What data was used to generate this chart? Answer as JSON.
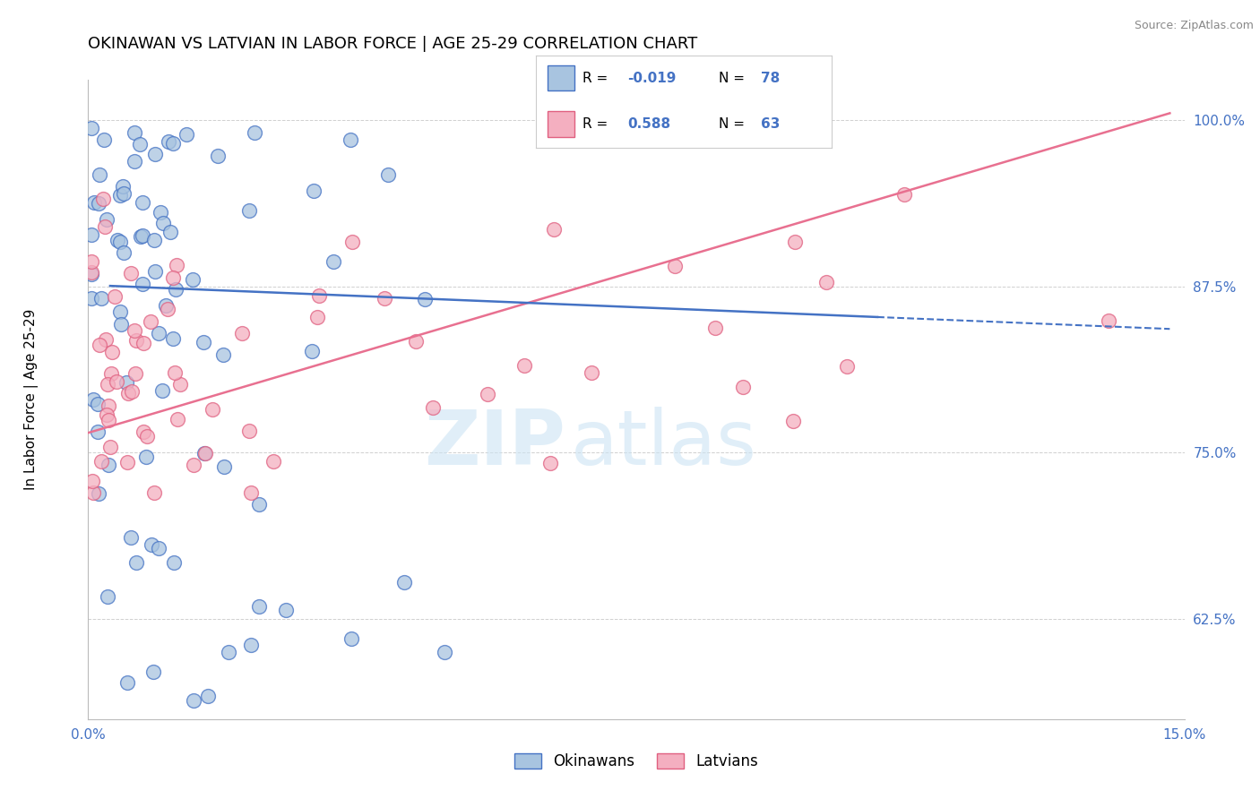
{
  "title": "OKINAWAN VS LATVIAN IN LABOR FORCE | AGE 25-29 CORRELATION CHART",
  "source_text": "Source: ZipAtlas.com",
  "xlim": [
    0.0,
    0.15
  ],
  "ylim": [
    0.55,
    1.03
  ],
  "okinawan_fill": "#a8c4e0",
  "okinawan_edge": "#4472c4",
  "latvian_fill": "#f4afc0",
  "latvian_edge": "#e06080",
  "trend_blue": "#4472c4",
  "trend_pink": "#e87090",
  "legend_label_okinawan": "Okinawans",
  "legend_label_latvian": "Latvians",
  "R_okinawan": -0.019,
  "N_okinawan": 78,
  "R_latvian": 0.588,
  "N_latvian": 63,
  "ylabel": "In Labor Force | Age 25-29",
  "background_color": "#ffffff",
  "watermark_zip": "ZIP",
  "watermark_atlas": "atlas",
  "tick_color": "#4472c4",
  "yticks": [
    0.625,
    0.75,
    0.875,
    1.0
  ],
  "xticks": [
    0.0,
    0.15
  ]
}
